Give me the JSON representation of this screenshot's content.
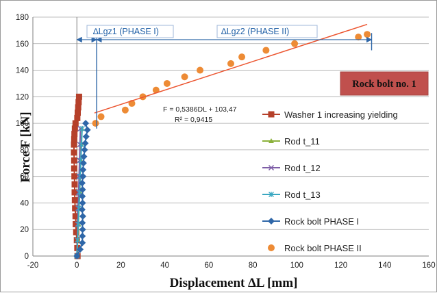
{
  "chart_data": {
    "type": "scatter",
    "title": "",
    "xlabel": "Displacement ∆L [mm]",
    "ylabel": "Force F [kN]",
    "xlim": [
      -20,
      160
    ],
    "ylim": [
      0,
      180
    ],
    "x_ticks": [
      -20,
      0,
      20,
      40,
      60,
      80,
      100,
      120,
      140,
      160
    ],
    "y_ticks": [
      0,
      20,
      40,
      60,
      80,
      100,
      120,
      140,
      160,
      180
    ],
    "grid": "horizontal",
    "legend_position": "right",
    "series": [
      {
        "name": "Washer 1 increasing yielding",
        "marker": "square-line",
        "color": "#b5402a",
        "points": [
          [
            0.3,
            0
          ],
          [
            0.2,
            6
          ],
          [
            0,
            12
          ],
          [
            -0.3,
            18
          ],
          [
            -0.5,
            24
          ],
          [
            -0.6,
            30
          ],
          [
            -0.8,
            36
          ],
          [
            -0.9,
            42
          ],
          [
            -1,
            48
          ],
          [
            -1,
            54
          ],
          [
            -1.1,
            60
          ],
          [
            -1.2,
            66
          ],
          [
            -1.2,
            72
          ],
          [
            -1.3,
            78
          ],
          [
            -1.3,
            84
          ],
          [
            -1.2,
            88
          ],
          [
            -1.1,
            92
          ],
          [
            -0.9,
            96
          ],
          [
            -0.6,
            100
          ],
          [
            0.2,
            104
          ],
          [
            0.4,
            108
          ],
          [
            0.6,
            112
          ],
          [
            0.8,
            116
          ],
          [
            1,
            120
          ]
        ]
      },
      {
        "name": "Rod t_11",
        "marker": "triangle-line",
        "color": "#8bb13b",
        "points": [
          [
            0,
            0
          ],
          [
            0.4,
            12
          ],
          [
            0.7,
            24
          ],
          [
            1,
            36
          ],
          [
            1.3,
            48
          ],
          [
            1.5,
            60
          ],
          [
            1.8,
            72
          ],
          [
            2,
            84
          ],
          [
            2.3,
            96
          ]
        ]
      },
      {
        "name": "Rod t_12",
        "marker": "x-line",
        "color": "#7e5ea7",
        "points": [
          [
            0,
            0
          ],
          [
            0.2,
            12
          ],
          [
            0.4,
            24
          ],
          [
            0.6,
            36
          ],
          [
            0.8,
            48
          ],
          [
            1,
            60
          ],
          [
            1.2,
            72
          ],
          [
            1.4,
            84
          ],
          [
            1.6,
            96
          ]
        ]
      },
      {
        "name": "Rod t_13",
        "marker": "star-line",
        "color": "#3aa7c1",
        "points": [
          [
            0,
            0
          ],
          [
            0.3,
            12
          ],
          [
            0.6,
            24
          ],
          [
            0.9,
            36
          ],
          [
            1.2,
            48
          ],
          [
            1.5,
            60
          ],
          [
            1.8,
            72
          ],
          [
            2.1,
            84
          ],
          [
            2.4,
            96
          ]
        ]
      },
      {
        "name": "Rock bolt PHASE I",
        "marker": "diamond-line",
        "color": "#2f67a8",
        "points": [
          [
            0,
            0
          ],
          [
            1.5,
            5
          ],
          [
            2.5,
            10
          ],
          [
            2.5,
            15
          ],
          [
            2.6,
            20
          ],
          [
            2.5,
            25
          ],
          [
            2.7,
            30
          ],
          [
            2.4,
            35
          ],
          [
            2.6,
            40
          ],
          [
            2.5,
            45
          ],
          [
            2.6,
            50
          ],
          [
            2.4,
            55
          ],
          [
            2.8,
            60
          ],
          [
            2.8,
            65
          ],
          [
            3,
            70
          ],
          [
            3.2,
            75
          ],
          [
            3.5,
            80
          ],
          [
            3.8,
            85
          ],
          [
            4.2,
            90
          ],
          [
            4.8,
            95
          ],
          [
            4,
            100
          ]
        ]
      },
      {
        "name": "Rock bolt PHASE II",
        "marker": "circle",
        "color": "#ed8b35",
        "points": [
          [
            8.5,
            100
          ],
          [
            11,
            105
          ],
          [
            22,
            110
          ],
          [
            25,
            115
          ],
          [
            30,
            120
          ],
          [
            36,
            125
          ],
          [
            41,
            130
          ],
          [
            49,
            135
          ],
          [
            56,
            140
          ],
          [
            70,
            145
          ],
          [
            75,
            150
          ],
          [
            86,
            155
          ],
          [
            99,
            160
          ],
          [
            128,
            165
          ],
          [
            132,
            167
          ]
        ]
      }
    ],
    "trendline": {
      "color": "#ec5530",
      "equation": "F = 0,5386DL + 103,47",
      "r2_label": "R² = 0,9415",
      "slope": 0.5386,
      "intercept": 103.47,
      "x_range": [
        8,
        132
      ]
    },
    "annotations": {
      "dim1_label": "∆Lgz1   (PHASE I)",
      "dim2_label": "∆Lgz2   (PHASE II)",
      "dim_y": 163,
      "dim1_x": [
        0,
        9
      ],
      "dim2_x": [
        9,
        134
      ],
      "vline1": {
        "x": 9,
        "y_bottom": 96,
        "y_top": 168
      },
      "vline2": {
        "x": 134,
        "y_bottom": 155,
        "y_top": 168
      },
      "badge": "Rock bolt no. 1"
    }
  },
  "colors": {
    "badge_fill": "#c0504d",
    "dimension": "#2f67a8"
  }
}
